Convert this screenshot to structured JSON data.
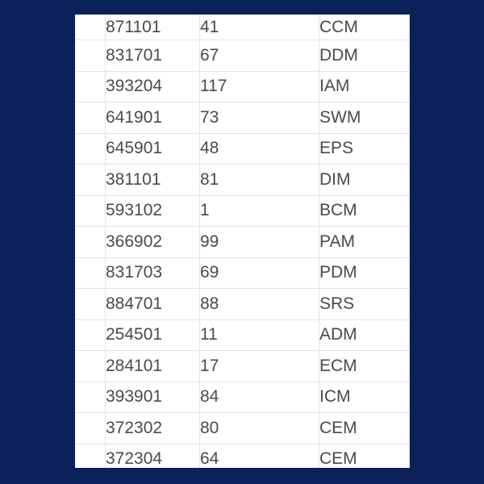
{
  "table": {
    "rows": [
      {
        "code": "871101",
        "count": "41",
        "abbr": "CCM"
      },
      {
        "code": "831701",
        "count": "67",
        "abbr": "DDM"
      },
      {
        "code": "393204",
        "count": "117",
        "abbr": "IAM"
      },
      {
        "code": "641901",
        "count": "73",
        "abbr": "SWM"
      },
      {
        "code": "645901",
        "count": "48",
        "abbr": "EPS"
      },
      {
        "code": "381101",
        "count": "81",
        "abbr": "DIM"
      },
      {
        "code": "593102",
        "count": "1",
        "abbr": "BCM"
      },
      {
        "code": "366902",
        "count": "99",
        "abbr": "PAM"
      },
      {
        "code": "831703",
        "count": "69",
        "abbr": "PDM"
      },
      {
        "code": "884701",
        "count": "88",
        "abbr": "SRS"
      },
      {
        "code": "254501",
        "count": "11",
        "abbr": "ADM"
      },
      {
        "code": "284101",
        "count": "17",
        "abbr": "ECM"
      },
      {
        "code": "393901",
        "count": "84",
        "abbr": "ICM"
      },
      {
        "code": "372302",
        "count": "80",
        "abbr": "CEM"
      },
      {
        "code": "372304",
        "count": "64",
        "abbr": "CEM"
      }
    ]
  }
}
